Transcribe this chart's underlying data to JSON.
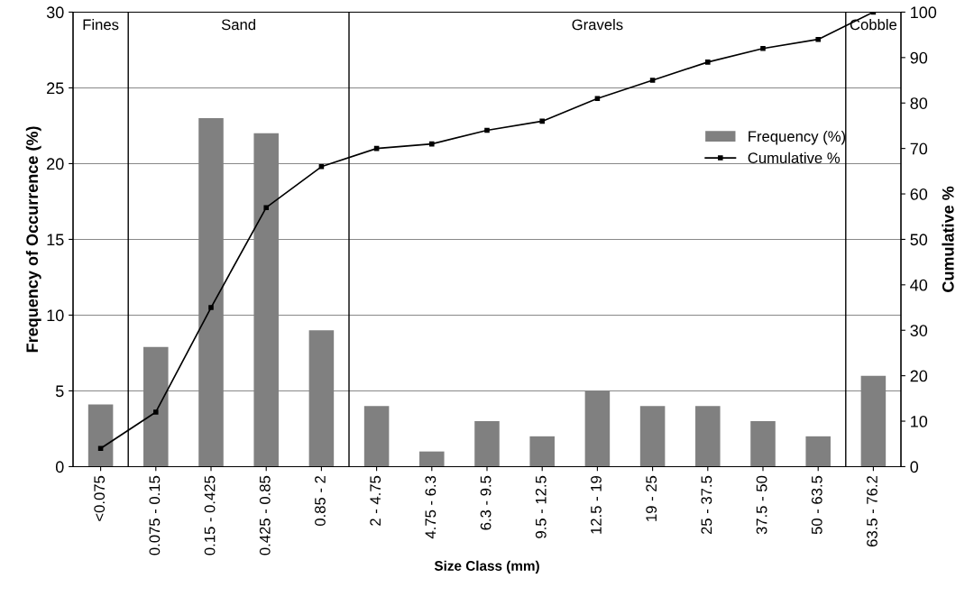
{
  "chart_data": {
    "type": "bar",
    "xlabel": "Size Class (mm)",
    "ylabel": "Frequency of Occurrence (%)",
    "y2label": "Cumulative %",
    "categories": [
      "<0.075",
      "0.075 - 0.15",
      "0.15 - 0.425",
      "0.425 - 0.85",
      "0.85 - 2",
      "2 - 4.75",
      "4.75 - 6.3",
      "6.3 - 9.5",
      "9.5 - 12.5",
      "12.5 - 19",
      "19 - 25",
      "25 - 37.5",
      "37.5 - 50",
      "50 - 63.5",
      "63.5 - 76.2"
    ],
    "series": [
      {
        "name": "Frequency (%)",
        "color": "#808080",
        "values": [
          4.1,
          7.9,
          23,
          22,
          9,
          4,
          1,
          3,
          2,
          5,
          4,
          4,
          3,
          2,
          6
        ]
      },
      {
        "name": "Cumulative %",
        "type": "line",
        "axis": "y2",
        "color": "#000000",
        "marker": "square",
        "values": [
          4,
          12,
          35,
          57,
          66,
          70,
          71,
          74,
          76,
          81,
          85,
          89,
          92,
          94,
          100
        ]
      }
    ],
    "ylim": [
      0,
      30
    ],
    "yticks": [
      0,
      5,
      10,
      15,
      20,
      25,
      30
    ],
    "y2lim": [
      0,
      100
    ],
    "y2ticks": [
      0,
      10,
      20,
      30,
      40,
      50,
      60,
      70,
      80,
      90,
      100
    ],
    "annotations": [
      "Fines",
      "Sand",
      "Gravels",
      "Cobble"
    ],
    "grid": "y",
    "legend": "right",
    "line_style": "solid"
  }
}
